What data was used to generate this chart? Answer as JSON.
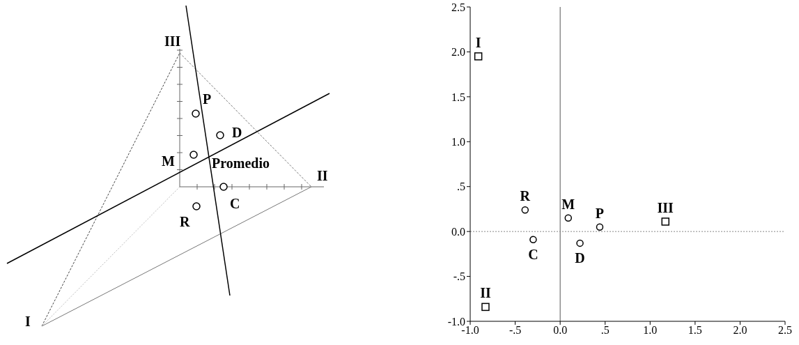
{
  "chart_data": [
    {
      "type": "other",
      "annotations": [
        "III",
        "P",
        "D",
        "M",
        "Promedio",
        "II",
        "C",
        "R",
        "I"
      ]
    },
    {
      "type": "scatter",
      "series": [
        {
          "color": "#000000",
          "marker": "square",
          "x": [
            -0.91,
            -0.83,
            1.17
          ],
          "values": [
            1.95,
            -0.84,
            0.11
          ],
          "value_labels": [
            "I",
            "II",
            "III"
          ]
        },
        {
          "color": "#000000",
          "marker": "circle",
          "x": [
            -0.39,
            0.09,
            0.44,
            -0.3,
            0.22
          ],
          "values": [
            0.24,
            0.15,
            0.05,
            -0.09,
            -0.13
          ],
          "value_labels": [
            "R",
            "M",
            "P",
            "C",
            "D"
          ]
        }
      ],
      "xlim": [
        -1.0,
        2.5
      ],
      "xticks": [
        {
          "value": -1.0,
          "label": "-1.0"
        },
        {
          "value": -0.5,
          "label": "-.5"
        },
        {
          "value": 0,
          "label": "0.0"
        },
        {
          "value": 0.5,
          "label": ".5"
        },
        {
          "value": 1.0,
          "label": "1.0"
        },
        {
          "value": 1.5,
          "label": "1.5"
        },
        {
          "value": 2.0,
          "label": "2.0"
        },
        {
          "value": 2.5,
          "label": "2.5"
        }
      ],
      "ylim": [
        -1.0,
        2.5
      ],
      "yticks": [
        {
          "value": -1.0,
          "label": "-1.0"
        },
        {
          "value": -0.5,
          "label": "-.5"
        },
        {
          "value": 0,
          "label": "0.0"
        },
        {
          "value": 0.5,
          "label": ".5"
        },
        {
          "value": 1.0,
          "label": "1.0"
        },
        {
          "value": 1.5,
          "label": "1.5"
        },
        {
          "value": 2.0,
          "label": "2.0"
        },
        {
          "value": 2.5,
          "label": "2.5"
        }
      ],
      "ref_lines": [
        {
          "axis": "x",
          "value": 0,
          "color": "#555555"
        },
        {
          "axis": "y",
          "value": 0,
          "color": "#888888",
          "line_style": "dotted"
        }
      ],
      "grid": false,
      "legend": false
    }
  ]
}
